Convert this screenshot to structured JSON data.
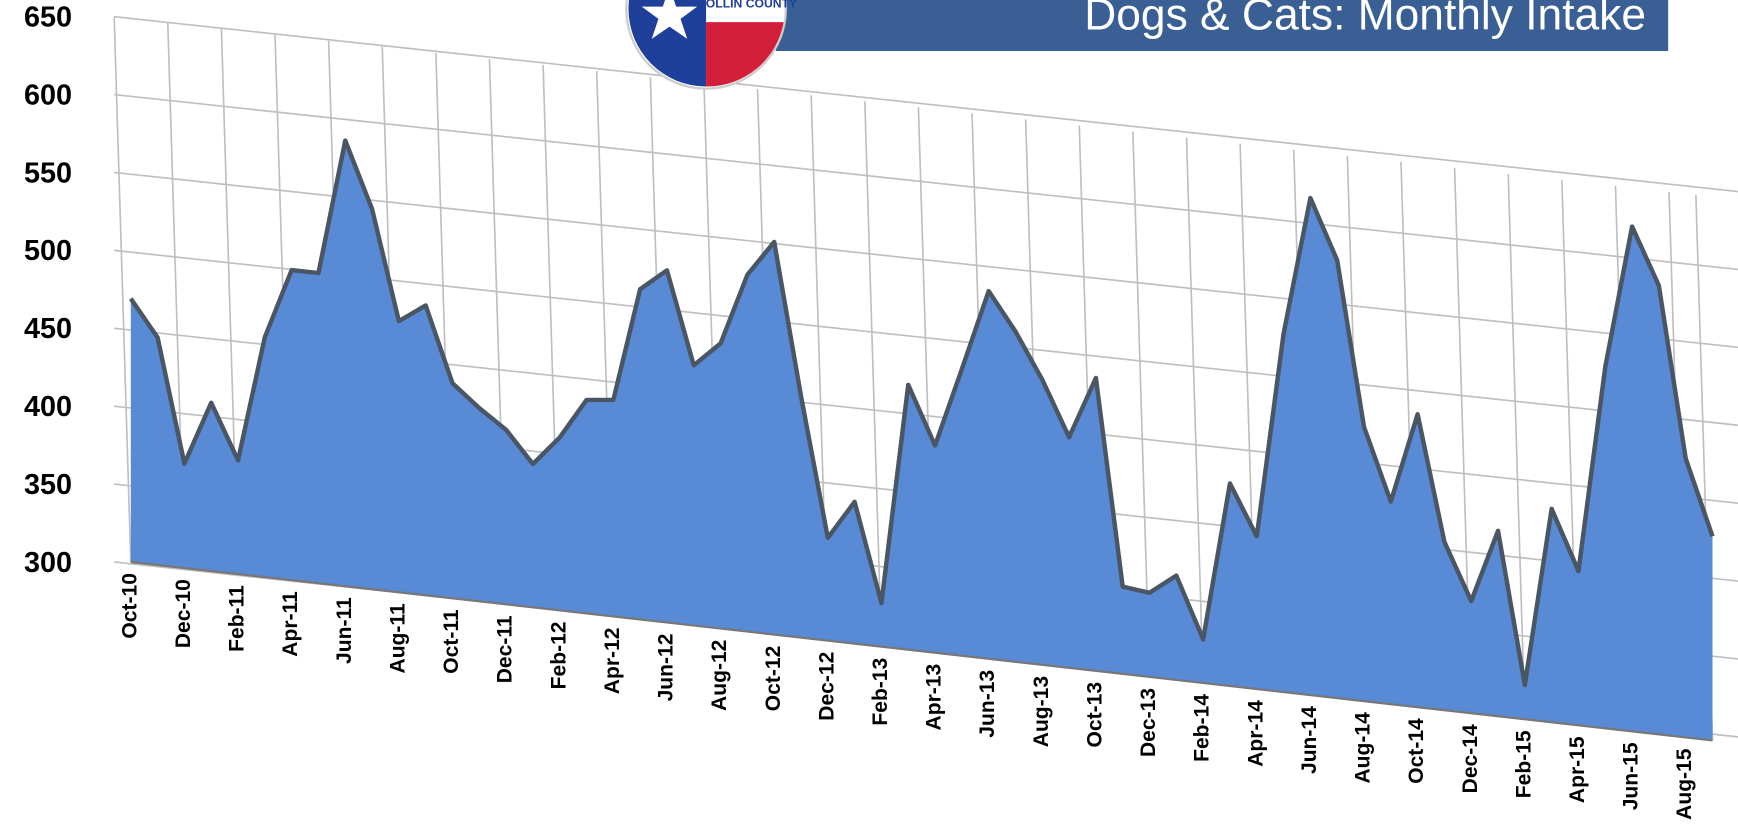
{
  "logo_text": "COLLIN COUNTY",
  "chart_data": {
    "type": "area",
    "title": "Dogs & Cats: Monthly Intake",
    "categories": [
      "Oct-10",
      null,
      "Dec-10",
      null,
      "Feb-11",
      null,
      "Apr-11",
      null,
      "Jun-11",
      null,
      "Aug-11",
      null,
      "Oct-11",
      null,
      "Dec-11",
      null,
      "Feb-12",
      null,
      "Apr-12",
      null,
      "Jun-12",
      null,
      "Aug-12",
      null,
      "Oct-12",
      null,
      "Dec-12",
      null,
      "Feb-13",
      null,
      "Apr-13",
      null,
      "Jun-13",
      null,
      "Aug-13",
      null,
      "Oct-13",
      null,
      "Dec-13",
      null,
      "Feb-14",
      null,
      "Apr-14",
      null,
      "Jun-14",
      null,
      "Aug-14",
      null,
      "Oct-14",
      null,
      "Dec-14",
      null,
      "Feb-15",
      null,
      "Apr-15",
      null,
      "Jun-15",
      null,
      "Aug-15",
      null
    ],
    "values": [
      469,
      446,
      367,
      408,
      373,
      454,
      499,
      499,
      586,
      544,
      474,
      486,
      438,
      424,
      412,
      392,
      411,
      437,
      439,
      512,
      526,
      467,
      483,
      529,
      552,
      455,
      366,
      391,
      328,
      470,
      433,
      484,
      536,
      512,
      483,
      448,
      488,
      356,
      354,
      367,
      328,
      430,
      398,
      530,
      619,
      581,
      476,
      430,
      488,
      408,
      372,
      419,
      322,
      437,
      399,
      532,
      624,
      588,
      479,
      431
    ],
    "color": "#588ad6",
    "edge_color": "#4a5663",
    "ylim": [
      300,
      650
    ],
    "yticks": [
      300,
      350,
      400,
      450,
      500,
      550,
      600,
      650
    ],
    "grid": true
  }
}
